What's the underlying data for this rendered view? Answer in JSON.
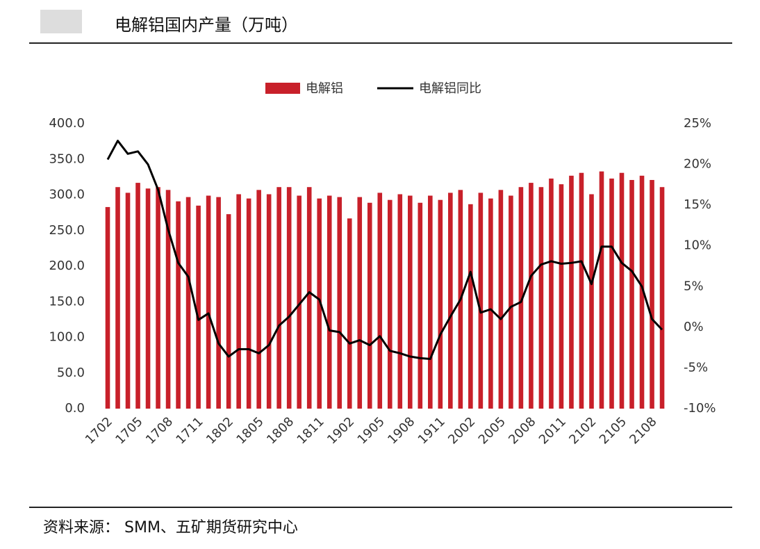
{
  "chart_data": {
    "type": "bar-line",
    "title": "电解铝国内产量（万吨）",
    "source": "资料来源： SMM、五矿期货研究中心",
    "categories": [
      "1702",
      null,
      null,
      "1705",
      null,
      null,
      "1708",
      null,
      null,
      "1711",
      null,
      null,
      "1802",
      null,
      null,
      "1805",
      null,
      null,
      "1808",
      null,
      null,
      "1811",
      null,
      null,
      "1902",
      null,
      null,
      "1905",
      null,
      null,
      "1908",
      null,
      null,
      "1911",
      null,
      null,
      "2002",
      null,
      null,
      "2005",
      null,
      null,
      "2008",
      null,
      null,
      "2011",
      null,
      null,
      "2102",
      null,
      null,
      "2105",
      null,
      null,
      "2108",
      null
    ],
    "series": [
      {
        "name": "电解铝",
        "type": "bar",
        "color": "#c8202a",
        "values": [
          283,
          311,
          303,
          317,
          309,
          311,
          307,
          291,
          297,
          285,
          299,
          297,
          273,
          301,
          295,
          307,
          301,
          311,
          311,
          299,
          311,
          295,
          299,
          297,
          267,
          297,
          289,
          303,
          293,
          301,
          299,
          289,
          299,
          293,
          303,
          307,
          287,
          303,
          295,
          307,
          299,
          311,
          317,
          311,
          323,
          315,
          327,
          331,
          301,
          333,
          323,
          331,
          321,
          327,
          321,
          311
        ]
      },
      {
        "name": "电解铝同比",
        "type": "line",
        "axis": "y2",
        "color": "#000000",
        "values": [
          20.6,
          22.9,
          21.3,
          21.6,
          20.0,
          16.9,
          12.0,
          7.9,
          6.2,
          0.9,
          1.7,
          -2.0,
          -3.6,
          -2.7,
          -2.7,
          -3.2,
          -2.2,
          0.2,
          1.3,
          2.8,
          4.3,
          3.4,
          -0.4,
          -0.6,
          -2.0,
          -1.6,
          -2.2,
          -1.1,
          -2.9,
          -3.2,
          -3.6,
          -3.8,
          -3.9,
          -0.9,
          1.3,
          3.4,
          6.8,
          1.8,
          2.2,
          1.0,
          2.5,
          3.1,
          6.3,
          7.7,
          8.1,
          7.8,
          7.9,
          8.1,
          5.3,
          9.9,
          9.9,
          7.9,
          6.9,
          5.0,
          1.0,
          -0.3
        ]
      }
    ],
    "ylim": [
      0,
      400
    ],
    "yticks": [
      {
        "value": 0,
        "label": "0.0"
      },
      {
        "value": 50,
        "label": "50.0"
      },
      {
        "value": 100,
        "label": "100.0"
      },
      {
        "value": 150,
        "label": "150.0"
      },
      {
        "value": 200,
        "label": "200.0"
      },
      {
        "value": 250,
        "label": "250.0"
      },
      {
        "value": 300,
        "label": "300.0"
      },
      {
        "value": 350,
        "label": "350.0"
      },
      {
        "value": 400,
        "label": "400.0"
      }
    ],
    "y2lim": [
      -10,
      25
    ],
    "y2ticks": [
      {
        "value": -10,
        "label": "-10%"
      },
      {
        "value": -5,
        "label": "-5%"
      },
      {
        "value": 0,
        "label": "0%"
      },
      {
        "value": 5,
        "label": "5%"
      },
      {
        "value": 10,
        "label": "10%"
      },
      {
        "value": 15,
        "label": "15%"
      },
      {
        "value": 20,
        "label": "20%"
      },
      {
        "value": 25,
        "label": "25%"
      }
    ],
    "legend": "top"
  }
}
